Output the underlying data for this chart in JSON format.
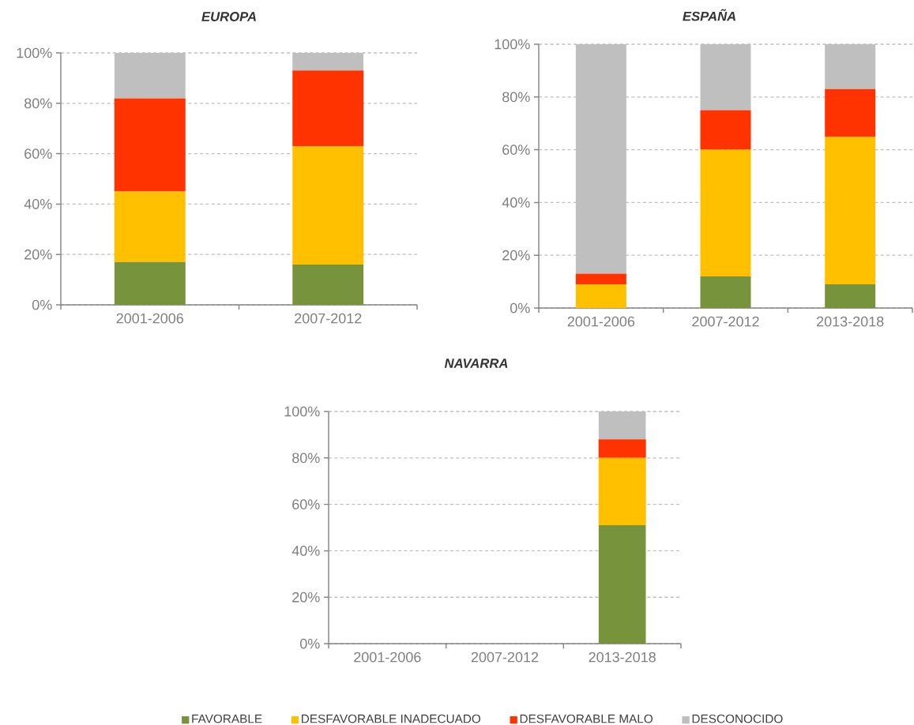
{
  "chart_data": [
    {
      "type": "bar",
      "title": "EUROPA",
      "categories": [
        "2001-2006",
        "2007-2012"
      ],
      "stacked": true,
      "series": [
        {
          "color": "#77933c",
          "values": [
            17,
            16
          ]
        },
        {
          "color": "#ffc000",
          "values": [
            28,
            47
          ]
        },
        {
          "color": "#ff3300",
          "values": [
            37,
            30
          ]
        },
        {
          "color": "#bfbfbf",
          "values": [
            18,
            7
          ]
        }
      ],
      "ylim": [
        0,
        100
      ],
      "yticks": [
        {
          "value": 0,
          "label": "0%"
        },
        {
          "value": 20,
          "label": "20%"
        },
        {
          "value": 40,
          "label": "40%"
        },
        {
          "value": 60,
          "label": "60%"
        },
        {
          "value": 80,
          "label": "80%"
        },
        {
          "value": 100,
          "label": "100%"
        }
      ],
      "grid": "y"
    },
    {
      "type": "bar",
      "title": "ESPAÑA",
      "categories": [
        "2001-2006",
        "2007-2012",
        "2013-2018"
      ],
      "stacked": true,
      "series": [
        {
          "color": "#77933c",
          "values": [
            0,
            12,
            9
          ]
        },
        {
          "color": "#ffc000",
          "values": [
            9,
            48,
            56
          ]
        },
        {
          "color": "#ff3300",
          "values": [
            4,
            15,
            18
          ]
        },
        {
          "color": "#bfbfbf",
          "values": [
            87,
            25,
            17
          ]
        }
      ],
      "ylim": [
        0,
        100
      ],
      "yticks": [
        {
          "value": 0,
          "label": "0%"
        },
        {
          "value": 20,
          "label": "20%"
        },
        {
          "value": 40,
          "label": "40%"
        },
        {
          "value": 60,
          "label": "60%"
        },
        {
          "value": 80,
          "label": "80%"
        },
        {
          "value": 100,
          "label": "100%"
        }
      ],
      "grid": "y"
    },
    {
      "type": "bar",
      "title": "NAVARRA",
      "categories": [
        "2001-2006",
        "2007-2012",
        "2013-2018"
      ],
      "stacked": true,
      "series": [
        {
          "name": "FAVORABLE",
          "color": "#77933c",
          "values": [
            null,
            null,
            51
          ]
        },
        {
          "name": "DESFAVORABLE INADECUADO",
          "color": "#ffc000",
          "values": [
            null,
            null,
            29
          ]
        },
        {
          "name": "DESFAVORABLE MALO",
          "color": "#ff3300",
          "values": [
            null,
            null,
            8
          ]
        },
        {
          "name": "DESCONOCIDO",
          "color": "#bfbfbf",
          "values": [
            null,
            null,
            12
          ]
        }
      ],
      "ylim": [
        0,
        100
      ],
      "yticks": [
        {
          "value": 0,
          "label": "0%"
        },
        {
          "value": 20,
          "label": "20%"
        },
        {
          "value": 40,
          "label": "40%"
        },
        {
          "value": 60,
          "label": "60%"
        },
        {
          "value": 80,
          "label": "80%"
        },
        {
          "value": 100,
          "label": "100%"
        }
      ],
      "grid": "y",
      "legend": "bottom"
    }
  ]
}
